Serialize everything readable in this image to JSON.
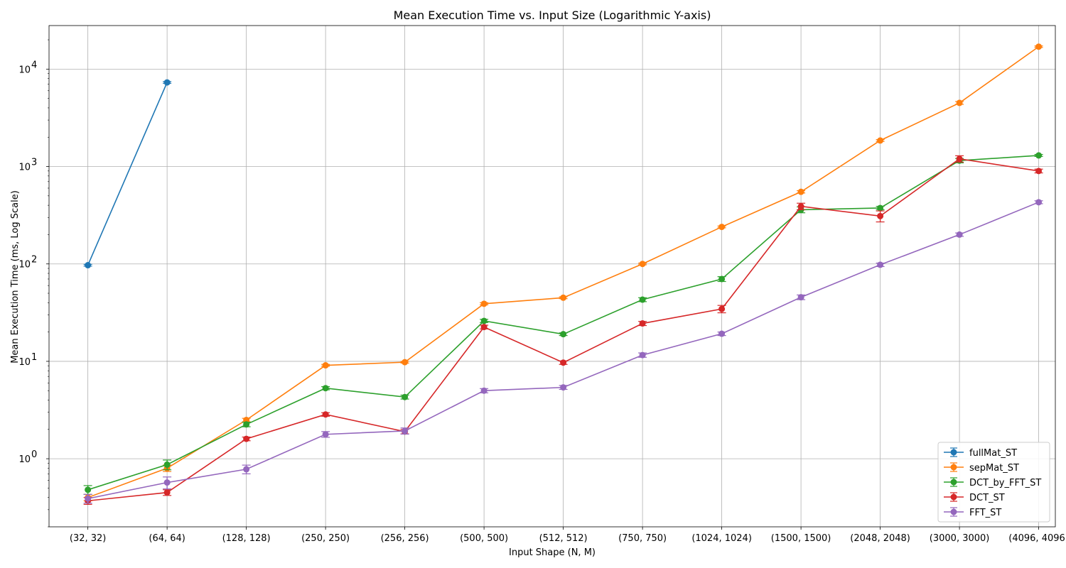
{
  "chart_data": {
    "type": "line",
    "title": "Mean Execution Time vs. Input Size (Logarithmic Y-axis)",
    "xlabel": "Input Shape (N, M)",
    "ylabel": "Mean Execution Time (ms, Log Scale)",
    "yscale": "log",
    "ylim": [
      0.2,
      28000
    ],
    "y_ticks": [
      {
        "value": 1,
        "base": "10",
        "exp": "0"
      },
      {
        "value": 10,
        "base": "10",
        "exp": "1"
      },
      {
        "value": 100,
        "base": "10",
        "exp": "2"
      },
      {
        "value": 1000,
        "base": "10",
        "exp": "3"
      },
      {
        "value": 10000,
        "base": "10",
        "exp": "4"
      }
    ],
    "grid": true,
    "legend_position": "lower-right",
    "categories": [
      "(32, 32)",
      "(64, 64)",
      "(128, 128)",
      "(250, 250)",
      "(256, 256)",
      "(500, 500)",
      "(512, 512)",
      "(750, 750)",
      "(1024, 1024)",
      "(1500, 1500)",
      "(2048, 2048)",
      "(3000, 3000)",
      "(4096, 4096)"
    ],
    "series": [
      {
        "name": "fullMat_ST",
        "color": "#1f77b4",
        "values": [
          97,
          7300,
          null,
          null,
          null,
          null,
          null,
          null,
          null,
          null,
          null,
          null,
          null
        ],
        "errors": [
          2,
          150,
          null,
          null,
          null,
          null,
          null,
          null,
          null,
          null,
          null,
          null,
          null
        ]
      },
      {
        "name": "sepMat_ST",
        "color": "#ff7f0e",
        "values": [
          0.4,
          0.8,
          2.5,
          9.1,
          9.8,
          39,
          45,
          100,
          240,
          550,
          1850,
          4500,
          17000
        ],
        "errors": [
          0.03,
          0.06,
          0.1,
          0.2,
          0.2,
          1.0,
          1.0,
          2,
          5,
          15,
          40,
          150,
          300
        ]
      },
      {
        "name": "DCT_by_FFT_ST",
        "color": "#2ca02c",
        "values": [
          0.48,
          0.87,
          2.25,
          5.3,
          4.3,
          26,
          19,
          43,
          70,
          360,
          375,
          1150,
          1300
        ],
        "errors": [
          0.05,
          0.1,
          0.12,
          0.2,
          0.2,
          1.0,
          0.6,
          2,
          4,
          25,
          15,
          60,
          30
        ]
      },
      {
        "name": "DCT_ST",
        "color": "#d62728",
        "values": [
          0.37,
          0.45,
          1.6,
          2.85,
          1.9,
          22.5,
          9.7,
          24.5,
          34.5,
          390,
          310,
          1200,
          900
        ],
        "errors": [
          0.03,
          0.03,
          0.07,
          0.12,
          0.1,
          1.0,
          0.4,
          1.2,
          3,
          30,
          40,
          90,
          40
        ]
      },
      {
        "name": "FFT_ST",
        "color": "#9467bd",
        "values": [
          0.39,
          0.57,
          0.78,
          1.78,
          1.93,
          5.0,
          5.4,
          11.6,
          19.2,
          45.5,
          98,
          200,
          430
        ],
        "errors": [
          0.04,
          0.08,
          0.08,
          0.12,
          0.14,
          0.25,
          0.25,
          0.6,
          0.8,
          2.5,
          4,
          8,
          15
        ]
      }
    ]
  }
}
